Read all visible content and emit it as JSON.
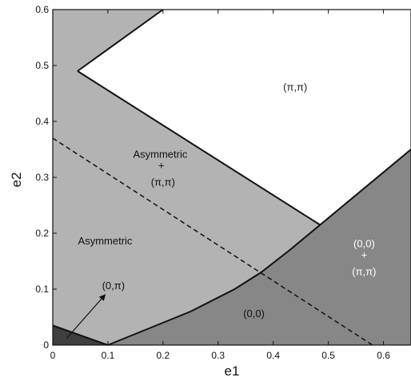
{
  "chart_data": {
    "type": "area",
    "xlabel": "e1",
    "ylabel": "e2",
    "xlim": [
      0,
      0.65
    ],
    "ylim": [
      0,
      0.6
    ],
    "xticks": [
      "0",
      "0.1",
      "0.2",
      "0.3",
      "0.4",
      "0.5",
      "0.6"
    ],
    "yticks": [
      "0",
      "0.1",
      "0.2",
      "0.3",
      "0.4",
      "0.5",
      "0.6"
    ],
    "grid": false,
    "colors": {
      "asymmetric": "#b3b3b3",
      "zero_zero": "#878787",
      "zero_pi": "#3f3f3f",
      "pi_pi": "#ffffff"
    },
    "boundaries": {
      "pi_pi_region": [
        [
          0.045,
          0.49
        ],
        [
          0.2,
          0.6
        ],
        [
          0.65,
          0.6
        ],
        [
          0.65,
          0.35
        ],
        [
          0.485,
          0.215
        ]
      ],
      "zero_zero_region": [
        [
          0.1,
          0
        ],
        [
          0.15,
          0.02
        ],
        [
          0.25,
          0.06
        ],
        [
          0.33,
          0.1
        ],
        [
          0.378,
          0.13
        ],
        [
          0.43,
          0.17
        ],
        [
          0.485,
          0.215
        ],
        [
          0.65,
          0.35
        ],
        [
          0.65,
          0
        ]
      ],
      "zero_pi_region": [
        [
          0,
          0
        ],
        [
          0,
          0.035
        ],
        [
          0.1,
          0
        ]
      ],
      "dashed_line": [
        [
          0,
          0.37
        ],
        [
          0.58,
          0
        ]
      ]
    },
    "region_labels": {
      "pi_pi": "(π,π)",
      "asym_pi_1": "Asymmetric",
      "asym_pi_2": "+",
      "asym_pi_3": "(π,π)",
      "asymmetric": "Asymmetric",
      "zero_pi": "(0,π)",
      "zero_zero": "(0,0)",
      "zz_pi_1": "(0,0)",
      "zz_pi_2": "+",
      "zz_pi_3": "(π,π)"
    },
    "annotation_arrow": {
      "from": [
        0.025,
        0.012
      ],
      "to": [
        0.095,
        0.09
      ]
    }
  }
}
